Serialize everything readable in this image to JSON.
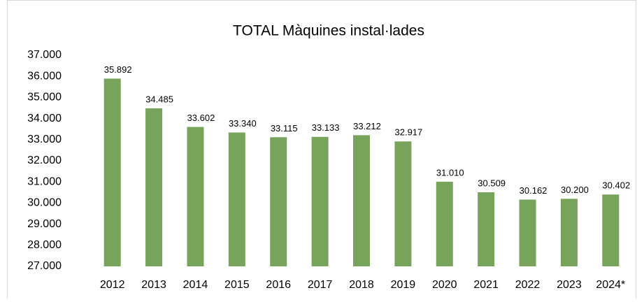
{
  "chart_data": {
    "type": "bar",
    "title": "TOTAL Màquines instal·lades",
    "categories": [
      "2012",
      "2013",
      "2014",
      "2015",
      "2016",
      "2017",
      "2018",
      "2019",
      "2020",
      "2021",
      "2022",
      "2023",
      "2024*"
    ],
    "values": [
      35892,
      34485,
      33602,
      33340,
      33115,
      33133,
      33212,
      32917,
      31010,
      30509,
      30162,
      30200,
      30402
    ],
    "value_labels": [
      "35.892",
      "34.485",
      "33.602",
      "33.340",
      "33.115",
      "33.133",
      "33.212",
      "32.917",
      "31.010",
      "30.509",
      "30.162",
      "30.200",
      "30.402"
    ],
    "color": "#77a35a",
    "ylim": [
      27000,
      37000
    ],
    "yticks": [
      {
        "value": 27000,
        "label": "27.000"
      },
      {
        "value": 28000,
        "label": "28.000"
      },
      {
        "value": 29000,
        "label": "29.000"
      },
      {
        "value": 30000,
        "label": "30.000"
      },
      {
        "value": 31000,
        "label": "31.000"
      },
      {
        "value": 32000,
        "label": "32.000"
      },
      {
        "value": 33000,
        "label": "33.000"
      },
      {
        "value": 34000,
        "label": "34.000"
      },
      {
        "value": 35000,
        "label": "35.000"
      },
      {
        "value": 36000,
        "label": "36.000"
      },
      {
        "value": 37000,
        "label": "37.000"
      }
    ],
    "grid": false
  }
}
